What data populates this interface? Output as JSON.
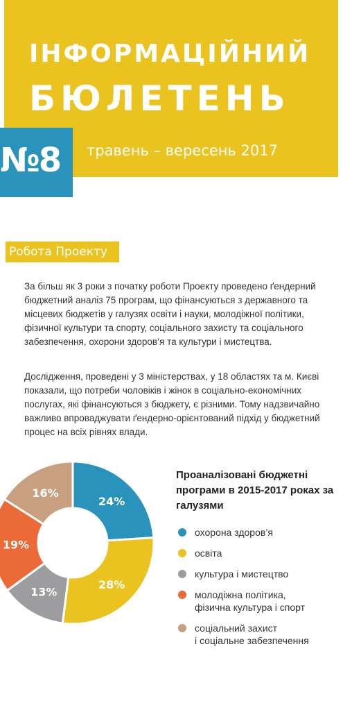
{
  "header": {
    "title_line1": "ІНФОРМАЦІЙНИЙ",
    "title_line2": "БЮЛЕТЕНЬ",
    "issue": "№8",
    "date": "травень – вересень 2017"
  },
  "section": {
    "label": "Робота Проекту",
    "paragraphs": [
      "За більш як 3 роки з початку роботи Проекту проведено ґендерний бюджетний аналіз 75 програм, що фінансуються з державного та місцевих бюджетів у галузях освіти і науки, молодіжної політики, фізичної культури та спорту, соціального захисту та соціального забезпечення, охорони здоров’я та культури і мистецтва.",
      "Дослідження, проведені у 3 міністерствах, у 18 областях та м. Києві показали, що потреби чоловіків і жінок в соціально-економічних послугах, які фінансуються з бюджету, є різними. Тому надзвичайно важливо впроваджувати ґендерно-орієнтований підхід у бюджетний процес на всіх рівнях влади."
    ]
  },
  "chart_data": {
    "type": "pie",
    "title": "Проаналізовані бюджетні програми в 2015-2017 роках за галузями",
    "slices": [
      {
        "label": "охорона здоров’я",
        "value": 24,
        "display": "24%",
        "color": "#2a93bb"
      },
      {
        "label": "освіта",
        "value": 28,
        "display": "28%",
        "color": "#eac31f"
      },
      {
        "label": "культура і мистецтво",
        "value": 13,
        "display": "13%",
        "color": "#9d9d9f"
      },
      {
        "label": "молодіжна політика, фізична культура і спорт",
        "value": 19,
        "display": "19%",
        "color": "#ec6a37"
      },
      {
        "label": "соціальний захист і соціальне забезпечення",
        "value": 16,
        "display": "16%",
        "color": "#c8a07f"
      }
    ],
    "legend_lines": [
      [
        "охорона здоров’я"
      ],
      [
        "освіта"
      ],
      [
        "культура і мистецтво"
      ],
      [
        "молодіжна політика,",
        "фізична культура і спорт"
      ],
      [
        "соціальний захист",
        "і соціальне забезпечення"
      ]
    ],
    "donut": true,
    "legend_position": "right"
  }
}
